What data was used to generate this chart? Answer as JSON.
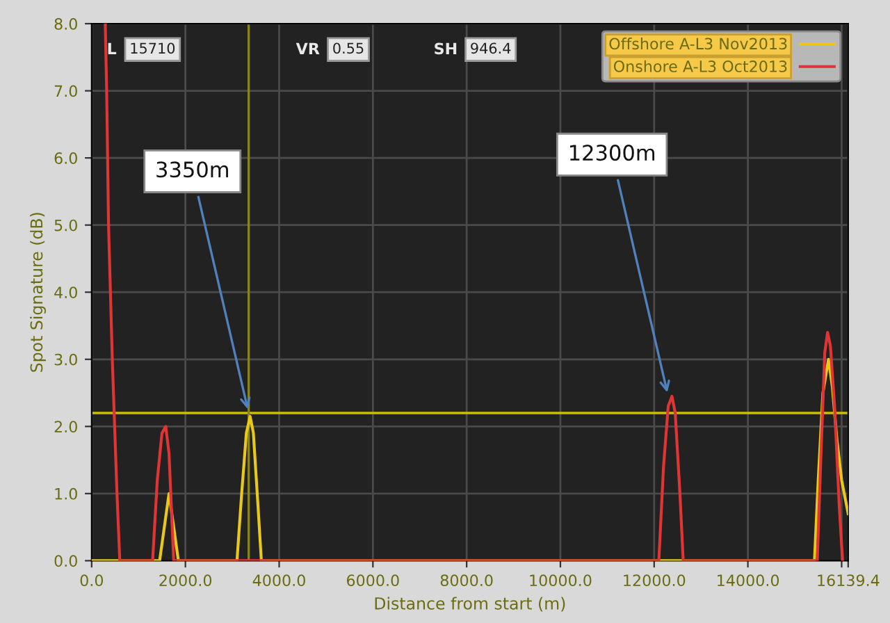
{
  "chart_data": {
    "type": "line",
    "xlabel": "Distance from start (m)",
    "ylabel": "Spot Signature (dB)",
    "xlim": [
      0,
      16139.4
    ],
    "ylim": [
      0,
      8
    ],
    "xticks": [
      {
        "value": 0,
        "label": "0.0"
      },
      {
        "value": 2000,
        "label": "2000.0"
      },
      {
        "value": 4000,
        "label": "4000.0"
      },
      {
        "value": 6000,
        "label": "6000.0"
      },
      {
        "value": 8000,
        "label": "8000.0"
      },
      {
        "value": 10000,
        "label": "10000.0"
      },
      {
        "value": 12000,
        "label": "12000.0"
      },
      {
        "value": 14000,
        "label": "14000.0"
      },
      {
        "value": 16000,
        "label": null
      },
      {
        "value": 16139.4,
        "label": "16139.4"
      }
    ],
    "yticks": [
      {
        "value": 0,
        "label": "0.0"
      },
      {
        "value": 1,
        "label": "1.0"
      },
      {
        "value": 2,
        "label": "2.0"
      },
      {
        "value": 3,
        "label": "3.0"
      },
      {
        "value": 4,
        "label": "4.0"
      },
      {
        "value": 5,
        "label": "5.0"
      },
      {
        "value": 6,
        "label": "6.0"
      },
      {
        "value": 7,
        "label": "7.0"
      },
      {
        "value": 8,
        "label": "8.0"
      }
    ],
    "grid": true,
    "legend": "top right",
    "marker": "none",
    "line_style": "solid",
    "series": [
      {
        "name": "Offshore A-L3 Nov2013",
        "color": "#e8c81a",
        "x": [
          0,
          1450,
          1550,
          1650,
          1750,
          1850,
          3100,
          3200,
          3300,
          3380,
          3450,
          3550,
          3620,
          15420,
          15500,
          15600,
          15720,
          15800,
          15900,
          16000,
          16139.4
        ],
        "values": [
          0,
          0,
          0.5,
          1.0,
          0.5,
          0,
          0,
          1.0,
          1.9,
          2.15,
          1.9,
          0.8,
          0,
          0,
          1.2,
          2.5,
          3.0,
          2.6,
          1.8,
          1.2,
          0.7
        ]
      },
      {
        "name": "Onshore A-L3 Oct2013",
        "color": "#e03535",
        "x": [
          290,
          320,
          360,
          400,
          440,
          480,
          540,
          600,
          1300,
          1400,
          1500,
          1580,
          1650,
          1750,
          12100,
          12200,
          12300,
          12380,
          12450,
          12550,
          12620,
          15480,
          15560,
          15640,
          15700,
          15760,
          15850,
          15950,
          16020
        ],
        "values": [
          8,
          7,
          5,
          4,
          3,
          2.2,
          1,
          0,
          0,
          1.2,
          1.9,
          2.0,
          1.6,
          0,
          0,
          1.4,
          2.3,
          2.45,
          2.2,
          1.0,
          0,
          0,
          1.6,
          3.1,
          3.4,
          3.2,
          2.3,
          0.8,
          0
        ]
      }
    ],
    "ref_lines": [
      {
        "axis": "y",
        "value": 2.2,
        "color": "#c8c000"
      },
      {
        "axis": "x",
        "value": 3350,
        "color": "#8a8420"
      }
    ],
    "annotations": [
      "L",
      "15710",
      "VR",
      "0.55",
      "SH",
      "946.4",
      {
        "text": "3350m",
        "x": 3350,
        "y": 2.2
      },
      {
        "text": "12300m",
        "x": 12300,
        "y": 2.45
      }
    ]
  }
}
